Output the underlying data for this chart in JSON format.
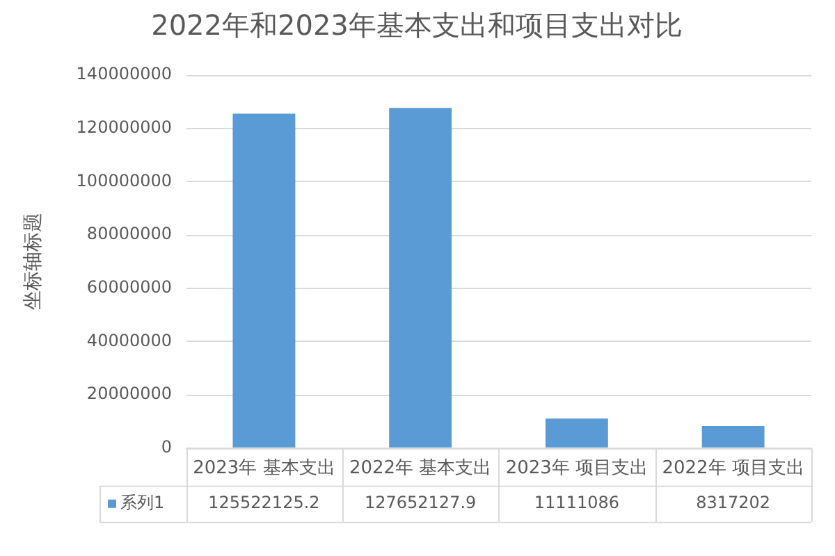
{
  "chart_data": {
    "type": "bar",
    "title": "2022年和2023年基本支出和项目支出对比",
    "ylabel": "坐标轴标题",
    "categories": [
      "2023年 基本支出",
      "2022年 基本支出",
      "2023年 项目支出",
      "2022年 项目支出"
    ],
    "series": [
      {
        "name": "系列1",
        "color": "#5b9bd5",
        "values": [
          125522125.2,
          127652127.9,
          11111086,
          8317202
        ]
      }
    ],
    "ylim": [
      0,
      140000000
    ],
    "yticks": [
      0,
      20000000,
      40000000,
      60000000,
      80000000,
      100000000,
      120000000,
      140000000
    ],
    "grid": "y",
    "legend": "bottom",
    "data_labels": true
  }
}
